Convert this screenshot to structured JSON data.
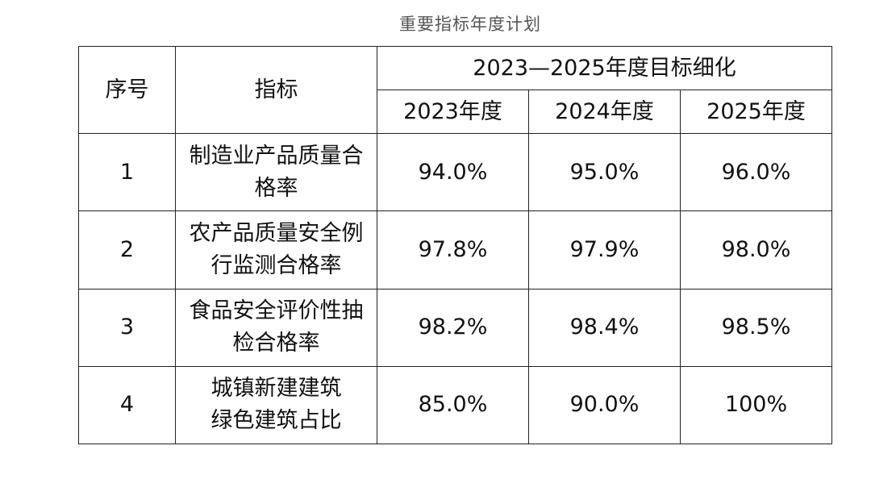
{
  "doc_title": "重要指标年度计划",
  "table": {
    "col_no_header": "序号",
    "col_indicator_header": "指标",
    "group_header": "2023—2025年度目标细化",
    "year_headers": [
      "2023年度",
      "2024年度",
      "2025年度"
    ],
    "rows": [
      {
        "no": "1",
        "indicator": [
          "制造业产品质量合",
          "格率"
        ],
        "values": [
          "94.0%",
          "95.0%",
          "96.0%"
        ]
      },
      {
        "no": "2",
        "indicator": [
          "农产品质量安全例",
          "行监测合格率"
        ],
        "values": [
          "97.8%",
          "97.9%",
          "98.0%"
        ]
      },
      {
        "no": "3",
        "indicator": [
          "食品安全评价性抽",
          "检合格率"
        ],
        "values": [
          "98.2%",
          "98.4%",
          "98.5%"
        ]
      },
      {
        "no": "4",
        "indicator": [
          "城镇新建建筑",
          "绿色建筑占比"
        ],
        "values": [
          "85.0%",
          "90.0%",
          "100%"
        ]
      }
    ]
  }
}
